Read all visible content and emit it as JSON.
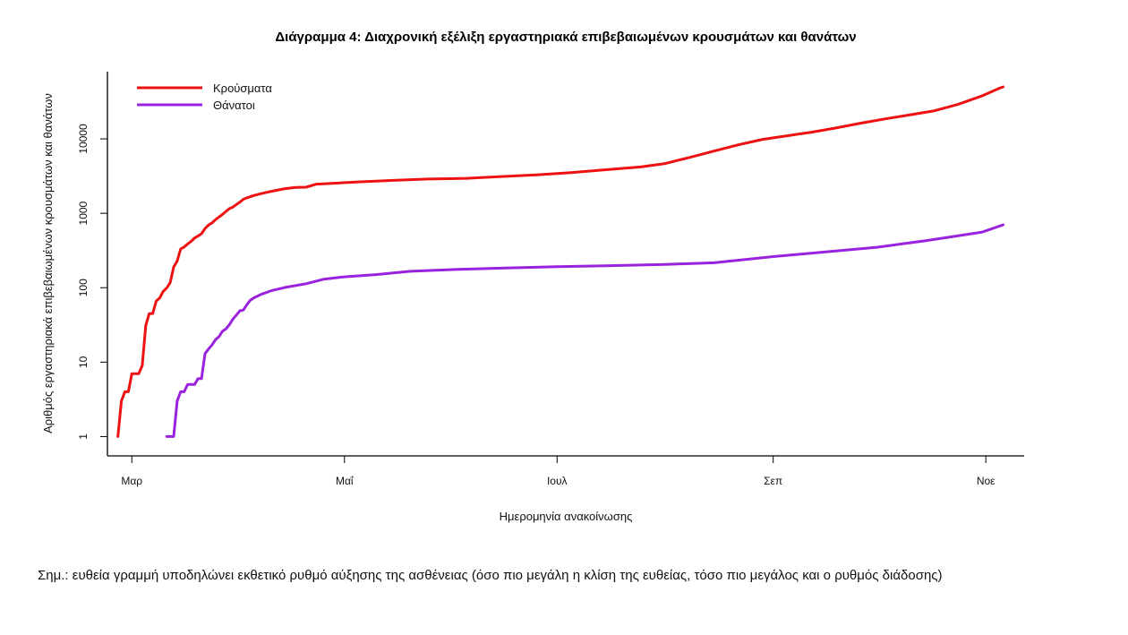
{
  "chart_data": {
    "type": "line",
    "title": "Διάγραμμα 4: Διαχρονική εξέλιξη εργαστηριακά επιβεβαιωμένων κρουσμάτων και θανάτων",
    "xlabel": "Ημερομηνία ανακοίνωσης",
    "ylabel": "Αριθμός εργαστηριακά επιβεβαιωμένων κρουσμάτων και θανάτων",
    "y_scale": "log",
    "ylim": [
      0.55,
      80000
    ],
    "xlim": [
      "2020-02-23",
      "2020-11-12"
    ],
    "x_ticks": [
      {
        "date": "2020-03-01",
        "label": "Μαρ"
      },
      {
        "date": "2020-05-01",
        "label": "Μαΐ"
      },
      {
        "date": "2020-07-01",
        "label": "Ιουλ"
      },
      {
        "date": "2020-09-01",
        "label": "Σεπ"
      },
      {
        "date": "2020-11-01",
        "label": "Νοε"
      }
    ],
    "y_ticks": [
      {
        "value": 1,
        "label": "1"
      },
      {
        "value": 10,
        "label": "10"
      },
      {
        "value": 100,
        "label": "100"
      },
      {
        "value": 1000,
        "label": "1000"
      },
      {
        "value": 10000,
        "label": "10000"
      }
    ],
    "grid": false,
    "legend_position": "top-left",
    "series": [
      {
        "name": "Κρούσματα",
        "color": "#ee1111",
        "points": [
          [
            "2020-02-26",
            1
          ],
          [
            "2020-02-27",
            3
          ],
          [
            "2020-02-28",
            4
          ],
          [
            "2020-02-29",
            4
          ],
          [
            "2020-03-01",
            7
          ],
          [
            "2020-03-02",
            7
          ],
          [
            "2020-03-03",
            7
          ],
          [
            "2020-03-04",
            9
          ],
          [
            "2020-03-05",
            31
          ],
          [
            "2020-03-06",
            45
          ],
          [
            "2020-03-07",
            45
          ],
          [
            "2020-03-08",
            66
          ],
          [
            "2020-03-09",
            73
          ],
          [
            "2020-03-10",
            89
          ],
          [
            "2020-03-11",
            99
          ],
          [
            "2020-03-12",
            117
          ],
          [
            "2020-03-13",
            190
          ],
          [
            "2020-03-14",
            228
          ],
          [
            "2020-03-15",
            331
          ],
          [
            "2020-03-16",
            352
          ],
          [
            "2020-03-17",
            387
          ],
          [
            "2020-03-18",
            418
          ],
          [
            "2020-03-19",
            464
          ],
          [
            "2020-03-20",
            495
          ],
          [
            "2020-03-21",
            530
          ],
          [
            "2020-03-22",
            624
          ],
          [
            "2020-03-23",
            695
          ],
          [
            "2020-03-24",
            743
          ],
          [
            "2020-03-25",
            821
          ],
          [
            "2020-03-26",
            892
          ],
          [
            "2020-03-27",
            966
          ],
          [
            "2020-03-28",
            1061
          ],
          [
            "2020-03-29",
            1156
          ],
          [
            "2020-03-30",
            1212
          ],
          [
            "2020-03-31",
            1314
          ],
          [
            "2020-04-01",
            1415
          ],
          [
            "2020-04-02",
            1544
          ],
          [
            "2020-04-03",
            1613
          ],
          [
            "2020-04-05",
            1735
          ],
          [
            "2020-04-08",
            1884
          ],
          [
            "2020-04-11",
            2011
          ],
          [
            "2020-04-14",
            2145
          ],
          [
            "2020-04-17",
            2224
          ],
          [
            "2020-04-20",
            2245
          ],
          [
            "2020-04-23",
            2463
          ],
          [
            "2020-04-28",
            2534
          ],
          [
            "2020-05-05",
            2642
          ],
          [
            "2020-05-15",
            2770
          ],
          [
            "2020-05-25",
            2882
          ],
          [
            "2020-06-05",
            2952
          ],
          [
            "2020-06-15",
            3121
          ],
          [
            "2020-06-25",
            3287
          ],
          [
            "2020-07-05",
            3519
          ],
          [
            "2020-07-15",
            3854
          ],
          [
            "2020-07-25",
            4193
          ],
          [
            "2020-08-01",
            4662
          ],
          [
            "2020-08-08",
            5623
          ],
          [
            "2020-08-15",
            6858
          ],
          [
            "2020-08-22",
            8315
          ],
          [
            "2020-08-29",
            9841
          ],
          [
            "2020-09-05",
            11000
          ],
          [
            "2020-09-12",
            12300
          ],
          [
            "2020-09-19",
            14000
          ],
          [
            "2020-09-26",
            16200
          ],
          [
            "2020-10-03",
            18500
          ],
          [
            "2020-10-10",
            20900
          ],
          [
            "2020-10-17",
            23700
          ],
          [
            "2020-10-24",
            29000
          ],
          [
            "2020-10-31",
            38000
          ],
          [
            "2020-11-05",
            48000
          ],
          [
            "2020-11-06",
            50000
          ]
        ]
      },
      {
        "name": "Θάνατοι",
        "color": "#9922dd",
        "points": [
          [
            "2020-03-11",
            1
          ],
          [
            "2020-03-12",
            1
          ],
          [
            "2020-03-13",
            1
          ],
          [
            "2020-03-14",
            3
          ],
          [
            "2020-03-15",
            4
          ],
          [
            "2020-03-16",
            4
          ],
          [
            "2020-03-17",
            5
          ],
          [
            "2020-03-18",
            5
          ],
          [
            "2020-03-19",
            5
          ],
          [
            "2020-03-20",
            6
          ],
          [
            "2020-03-21",
            6
          ],
          [
            "2020-03-22",
            13
          ],
          [
            "2020-03-23",
            15
          ],
          [
            "2020-03-24",
            17
          ],
          [
            "2020-03-25",
            20
          ],
          [
            "2020-03-26",
            22
          ],
          [
            "2020-03-27",
            26
          ],
          [
            "2020-03-28",
            28
          ],
          [
            "2020-03-29",
            32
          ],
          [
            "2020-03-30",
            38
          ],
          [
            "2020-03-31",
            43
          ],
          [
            "2020-04-01",
            49
          ],
          [
            "2020-04-02",
            50
          ],
          [
            "2020-04-03",
            59
          ],
          [
            "2020-04-04",
            68
          ],
          [
            "2020-04-05",
            73
          ],
          [
            "2020-04-07",
            81
          ],
          [
            "2020-04-10",
            91
          ],
          [
            "2020-04-14",
            101
          ],
          [
            "2020-04-20",
            113
          ],
          [
            "2020-04-25",
            130
          ],
          [
            "2020-05-01",
            140
          ],
          [
            "2020-05-10",
            150
          ],
          [
            "2020-05-20",
            166
          ],
          [
            "2020-06-01",
            175
          ],
          [
            "2020-06-15",
            183
          ],
          [
            "2020-07-01",
            192
          ],
          [
            "2020-07-15",
            197
          ],
          [
            "2020-08-01",
            206
          ],
          [
            "2020-08-15",
            216
          ],
          [
            "2020-09-01",
            262
          ],
          [
            "2020-09-15",
            300
          ],
          [
            "2020-10-01",
            350
          ],
          [
            "2020-10-15",
            430
          ],
          [
            "2020-10-31",
            560
          ],
          [
            "2020-11-06",
            700
          ]
        ]
      }
    ]
  },
  "note": "Σημ.: ευθεία γραμμή υποδηλώνει εκθετικό ρυθμό αύξησης της ασθένειας (όσο πιο μεγάλη η κλίση της ευθείας, τόσο πιο μεγάλος και ο ρυθμός διάδοσης)"
}
